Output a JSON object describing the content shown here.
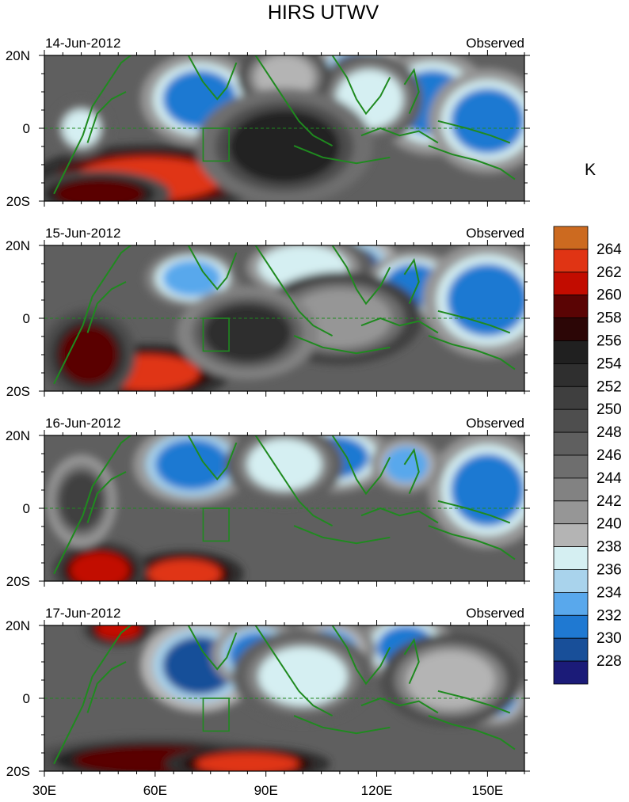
{
  "title": "HIRS UTWV",
  "colorbar": {
    "unit": "K",
    "levels": [
      228,
      230,
      232,
      234,
      236,
      238,
      240,
      242,
      244,
      246,
      248,
      250,
      252,
      254,
      256,
      258,
      260,
      262,
      264
    ],
    "level_labels": [
      "228",
      "230",
      "232",
      "234",
      "236",
      "238",
      "240",
      "242",
      "244",
      "246",
      "248",
      "250",
      "252",
      "254",
      "256",
      "258",
      "260",
      "262",
      "264"
    ],
    "colors": [
      "#1b1b78",
      "#184f99",
      "#1f79d2",
      "#59a8ec",
      "#a9d3ec",
      "#d5eff2",
      "#b4b4b4",
      "#969696",
      "#828282",
      "#6e6e6e",
      "#5f5f5f",
      "#4e4e4e",
      "#3f3f3f",
      "#2f2f2f",
      "#202020",
      "#2c0606",
      "#5a0404",
      "#c20c00",
      "#e03414",
      "#cc6a20"
    ]
  },
  "chart_data": [
    {
      "type": "heatmap",
      "date_label": "14-Jun-2012",
      "status_label": "Observed",
      "x_range": [
        30,
        160
      ],
      "y_range": [
        -20,
        20
      ],
      "y_tick_labels": [
        "20N",
        "0",
        "20S"
      ],
      "features": [
        {
          "lon": 72,
          "lat": 8,
          "rx": 10,
          "ry": 8,
          "value": 231
        },
        {
          "lon": 115,
          "lat": 14,
          "rx": 8,
          "ry": 7,
          "value": 229
        },
        {
          "lon": 135,
          "lat": 7,
          "rx": 10,
          "ry": 9,
          "value": 231
        },
        {
          "lon": 150,
          "lat": 2,
          "rx": 10,
          "ry": 9,
          "value": 231
        },
        {
          "lon": 118,
          "lat": 8,
          "rx": 9,
          "ry": 8,
          "value": 237
        },
        {
          "lon": 95,
          "lat": 14,
          "rx": 8,
          "ry": 6,
          "value": 238
        },
        {
          "lon": 58,
          "lat": -14,
          "rx": 20,
          "ry": 6,
          "value": 263
        },
        {
          "lon": 45,
          "lat": -18,
          "rx": 12,
          "ry": 4,
          "value": 259
        },
        {
          "lon": 40,
          "lat": 0,
          "rx": 5,
          "ry": 5,
          "value": 237
        },
        {
          "lon": 95,
          "lat": -5,
          "rx": 15,
          "ry": 10,
          "value": 254
        }
      ]
    },
    {
      "type": "heatmap",
      "date_label": "15-Jun-2012",
      "status_label": "Observed",
      "x_range": [
        30,
        160
      ],
      "y_range": [
        -20,
        20
      ],
      "y_tick_labels": [
        "20N",
        "0",
        "20S"
      ],
      "features": [
        {
          "lon": 70,
          "lat": 11,
          "rx": 8,
          "ry": 5,
          "value": 232
        },
        {
          "lon": 112,
          "lat": 14,
          "rx": 9,
          "ry": 6,
          "value": 229
        },
        {
          "lon": 130,
          "lat": 9,
          "rx": 8,
          "ry": 6,
          "value": 231
        },
        {
          "lon": 150,
          "lat": 5,
          "rx": 11,
          "ry": 10,
          "value": 231
        },
        {
          "lon": 100,
          "lat": 14,
          "rx": 12,
          "ry": 6,
          "value": 236
        },
        {
          "lon": 58,
          "lat": -15,
          "rx": 14,
          "ry": 5,
          "value": 262
        },
        {
          "lon": 42,
          "lat": -10,
          "rx": 8,
          "ry": 8,
          "value": 258
        },
        {
          "lon": 110,
          "lat": 0,
          "rx": 14,
          "ry": 8,
          "value": 240
        },
        {
          "lon": 85,
          "lat": -4,
          "rx": 12,
          "ry": 8,
          "value": 252
        }
      ]
    },
    {
      "type": "heatmap",
      "date_label": "16-Jun-2012",
      "status_label": "Observed",
      "x_range": [
        30,
        160
      ],
      "y_range": [
        -20,
        20
      ],
      "y_tick_labels": [
        "20N",
        "0",
        "20S"
      ],
      "features": [
        {
          "lon": 70,
          "lat": 12,
          "rx": 10,
          "ry": 7,
          "value": 230
        },
        {
          "lon": 108,
          "lat": 14,
          "rx": 10,
          "ry": 6,
          "value": 231
        },
        {
          "lon": 150,
          "lat": 5,
          "rx": 10,
          "ry": 10,
          "value": 231
        },
        {
          "lon": 128,
          "lat": 12,
          "rx": 6,
          "ry": 5,
          "value": 233
        },
        {
          "lon": 95,
          "lat": 12,
          "rx": 10,
          "ry": 7,
          "value": 237
        },
        {
          "lon": 68,
          "lat": -18,
          "rx": 10,
          "ry": 4,
          "value": 262
        },
        {
          "lon": 45,
          "lat": -17,
          "rx": 8,
          "ry": 5,
          "value": 261
        },
        {
          "lon": 40,
          "lat": 2,
          "rx": 6,
          "ry": 8,
          "value": 250
        }
      ]
    },
    {
      "type": "heatmap",
      "date_label": "17-Jun-2012",
      "status_label": "Observed",
      "x_range": [
        30,
        160
      ],
      "y_range": [
        -20,
        20
      ],
      "y_tick_labels": [
        "20N",
        "0",
        "20S"
      ],
      "x_tick_labels": [
        "30E",
        "60E",
        "90E",
        "120E",
        "150E"
      ],
      "features": [
        {
          "lon": 72,
          "lat": 9,
          "rx": 10,
          "ry": 8,
          "value": 229
        },
        {
          "lon": 88,
          "lat": 12,
          "rx": 8,
          "ry": 6,
          "value": 230
        },
        {
          "lon": 128,
          "lat": 14,
          "rx": 8,
          "ry": 6,
          "value": 231
        },
        {
          "lon": 107,
          "lat": 13,
          "rx": 8,
          "ry": 6,
          "value": 233
        },
        {
          "lon": 152,
          "lat": 0,
          "rx": 6,
          "ry": 5,
          "value": 233
        },
        {
          "lon": 100,
          "lat": 6,
          "rx": 12,
          "ry": 8,
          "value": 237
        },
        {
          "lon": 140,
          "lat": 5,
          "rx": 12,
          "ry": 8,
          "value": 238
        },
        {
          "lon": 50,
          "lat": 19,
          "rx": 6,
          "ry": 3,
          "value": 261
        },
        {
          "lon": 60,
          "lat": -17,
          "rx": 22,
          "ry": 4,
          "value": 259
        },
        {
          "lon": 85,
          "lat": -18,
          "rx": 14,
          "ry": 3,
          "value": 262
        }
      ]
    }
  ]
}
